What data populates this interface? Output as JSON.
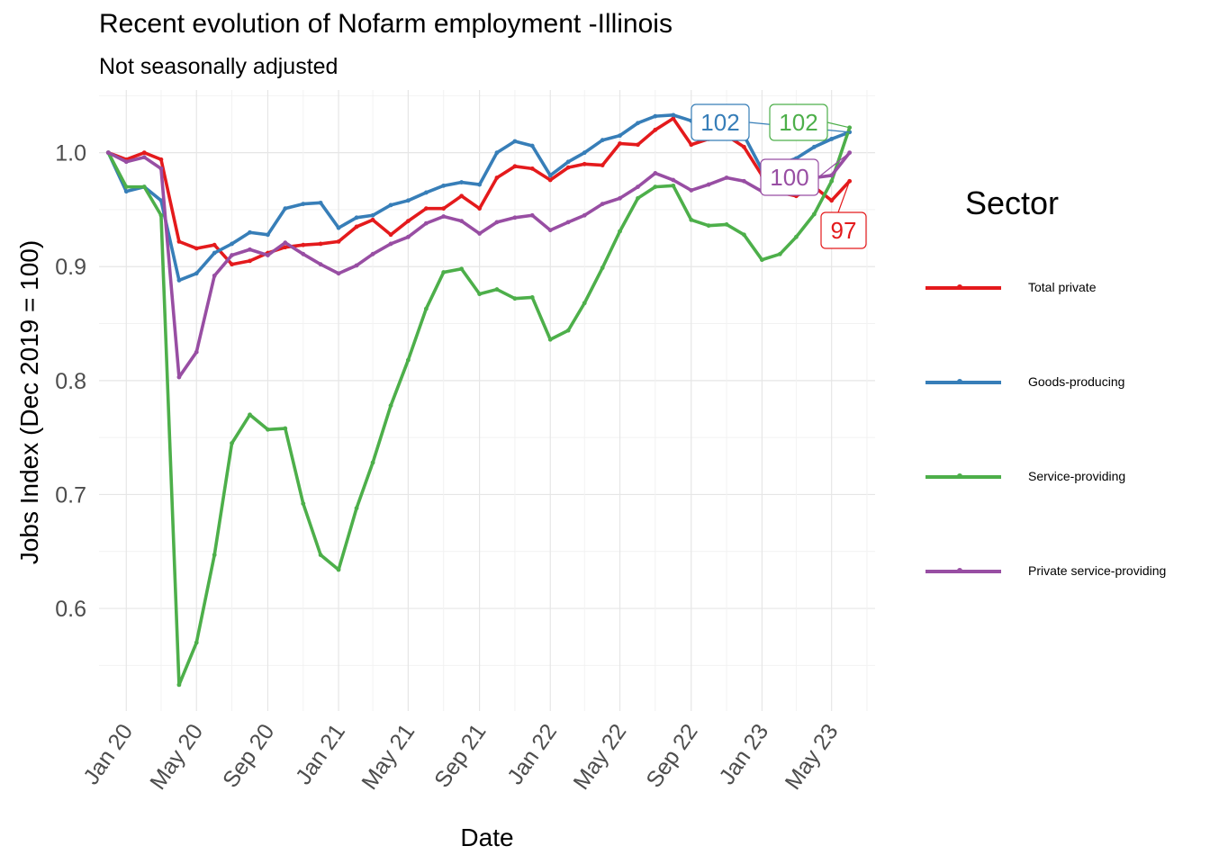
{
  "chart_data": {
    "type": "line",
    "title": "Recent evolution of Nofarm employment -Illinois",
    "subtitle": "Not seasonally adjusted",
    "xlabel": "Date",
    "ylabel": "Jobs Index (Dec 2019 = 100)",
    "ylim": [
      0.51,
      1.055
    ],
    "yticks": [
      "0.6",
      "0.7",
      "0.8",
      "0.9",
      "1.0"
    ],
    "xlim": [
      "2019-11-15",
      "2023-07-15"
    ],
    "xticks": [
      {
        "date": "2020-01-01",
        "label": "Jan 20"
      },
      {
        "date": "2020-05-01",
        "label": "May 20"
      },
      {
        "date": "2020-09-01",
        "label": "Sep 20"
      },
      {
        "date": "2021-01-01",
        "label": "Jan 21"
      },
      {
        "date": "2021-05-01",
        "label": "May 21"
      },
      {
        "date": "2021-09-01",
        "label": "Sep 21"
      },
      {
        "date": "2022-01-01",
        "label": "Jan 22"
      },
      {
        "date": "2022-05-01",
        "label": "May 22"
      },
      {
        "date": "2022-09-01",
        "label": "Sep 22"
      },
      {
        "date": "2023-01-01",
        "label": "Jan 23"
      },
      {
        "date": "2023-05-01",
        "label": "May 23"
      }
    ],
    "dates": [
      "2019-12",
      "2020-01",
      "2020-02",
      "2020-03",
      "2020-04",
      "2020-05",
      "2020-06",
      "2020-07",
      "2020-08",
      "2020-09",
      "2020-10",
      "2020-11",
      "2020-12",
      "2021-01",
      "2021-02",
      "2021-03",
      "2021-04",
      "2021-05",
      "2021-06",
      "2021-07",
      "2021-08",
      "2021-09",
      "2021-10",
      "2021-11",
      "2021-12",
      "2022-01",
      "2022-02",
      "2022-03",
      "2022-04",
      "2022-05",
      "2022-06",
      "2022-07",
      "2022-08",
      "2022-09",
      "2022-10",
      "2022-11",
      "2022-12",
      "2023-01",
      "2023-02",
      "2023-03",
      "2023-04",
      "2023-05",
      "2023-06"
    ],
    "series": [
      {
        "name": "Total private",
        "color": "#E41A1C",
        "end_label": "97",
        "values": [
          1.0,
          0.994,
          1.0,
          0.994,
          0.922,
          0.916,
          0.919,
          0.902,
          0.905,
          0.912,
          0.917,
          0.919,
          0.92,
          0.922,
          0.935,
          0.941,
          0.928,
          0.94,
          0.951,
          0.951,
          0.962,
          0.951,
          0.978,
          0.988,
          0.986,
          0.976,
          0.987,
          0.99,
          0.989,
          1.008,
          1.007,
          1.02,
          1.03,
          1.007,
          1.012,
          1.015,
          1.005,
          0.98,
          0.965,
          0.962,
          0.97,
          0.958,
          0.975
        ]
      },
      {
        "name": "Goods-producing",
        "color": "#377EB8",
        "end_label": "102",
        "values": [
          1.0,
          0.966,
          0.97,
          0.958,
          0.888,
          0.894,
          0.912,
          0.92,
          0.93,
          0.928,
          0.951,
          0.955,
          0.956,
          0.934,
          0.943,
          0.945,
          0.954,
          0.958,
          0.965,
          0.971,
          0.974,
          0.972,
          1.0,
          1.01,
          1.006,
          0.98,
          0.992,
          1.0,
          1.011,
          1.015,
          1.026,
          1.032,
          1.033,
          1.028,
          1.032,
          1.025,
          1.015,
          0.985,
          0.99,
          0.995,
          1.005,
          1.012,
          1.018
        ]
      },
      {
        "name": "Service-providing",
        "color": "#4DAF4A",
        "end_label": "102",
        "values": [
          1.0,
          0.97,
          0.97,
          0.945,
          0.533,
          0.57,
          0.647,
          0.745,
          0.77,
          0.757,
          0.758,
          0.692,
          0.647,
          0.634,
          0.688,
          0.728,
          0.778,
          0.818,
          0.863,
          0.895,
          0.898,
          0.876,
          0.88,
          0.872,
          0.873,
          0.836,
          0.844,
          0.868,
          0.899,
          0.931,
          0.96,
          0.97,
          0.971,
          0.941,
          0.936,
          0.937,
          0.928,
          0.906,
          0.911,
          0.926,
          0.946,
          0.975,
          1.022
        ]
      },
      {
        "name": "Private service-providing",
        "color": "#984EA3",
        "end_label": "100",
        "values": [
          1.0,
          0.992,
          0.996,
          0.986,
          0.803,
          0.825,
          0.892,
          0.91,
          0.915,
          0.91,
          0.921,
          0.911,
          0.902,
          0.894,
          0.901,
          0.911,
          0.92,
          0.926,
          0.938,
          0.944,
          0.94,
          0.929,
          0.939,
          0.943,
          0.945,
          0.932,
          0.939,
          0.945,
          0.955,
          0.96,
          0.97,
          0.982,
          0.976,
          0.967,
          0.972,
          0.978,
          0.975,
          0.966,
          0.973,
          0.977,
          0.978,
          0.98,
          1.0
        ]
      }
    ]
  },
  "legend": {
    "title": "Sector"
  }
}
